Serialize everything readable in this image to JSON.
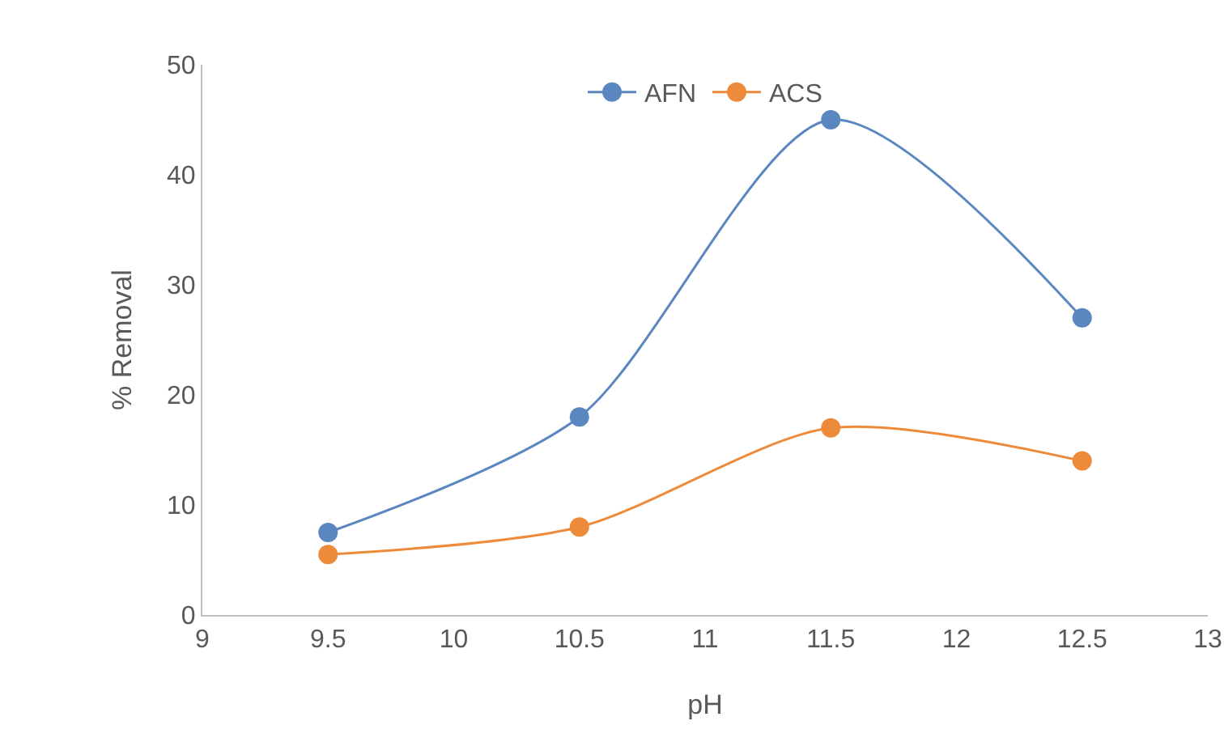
{
  "chart_data": {
    "type": "line",
    "xlabel": "pH",
    "ylabel": "% Removal",
    "x": [
      9.5,
      10.5,
      11.5,
      12.5
    ],
    "series": [
      {
        "name": "AFN",
        "color": "#5b87c0",
        "values": [
          7.5,
          18,
          45,
          27
        ]
      },
      {
        "name": "ACS",
        "color": "#ed8b3a",
        "values": [
          5.5,
          8,
          17,
          14
        ]
      }
    ],
    "xlim": [
      9,
      13
    ],
    "xticks": [
      9,
      9.5,
      10,
      10.5,
      11,
      11.5,
      12,
      12.5,
      13
    ],
    "ylim": [
      0,
      50
    ],
    "yticks": [
      0,
      10,
      20,
      30,
      40,
      50
    ],
    "grid": false,
    "legend": "top",
    "marker": "circle",
    "line_style": "solid"
  }
}
